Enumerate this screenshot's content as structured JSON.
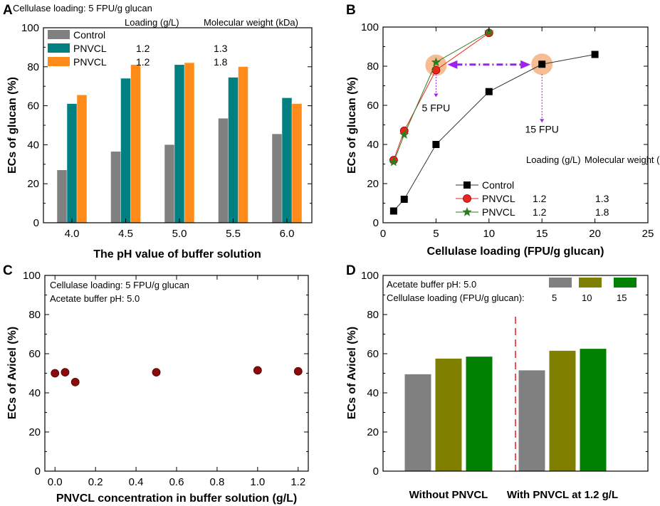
{
  "chart_data": [
    {
      "panel": "A",
      "type": "bar",
      "title": "",
      "xlabel": "The pH value of buffer solution",
      "ylabel": "ECs of glucan (%)",
      "ylim": [
        0,
        100
      ],
      "yticks": [
        "0",
        "20",
        "40",
        "60",
        "80",
        "100"
      ],
      "categories": [
        "4.0",
        "4.5",
        "5.0",
        "5.5",
        "6.0"
      ],
      "annotation": "Cellulase loading: 5 FPU/g glucan",
      "legend_columns": [
        "Loading (g/L)",
        "Molecular weight (kDa)"
      ],
      "series": [
        {
          "name": "Control",
          "color": "#808080",
          "loading": "",
          "mw": "",
          "values": [
            27,
            36.5,
            40,
            53.5,
            45.5
          ]
        },
        {
          "name": "PNVCL",
          "color": "#008080",
          "loading": "1.2",
          "mw": "1.3",
          "values": [
            61,
            74,
            81,
            74.5,
            64
          ]
        },
        {
          "name": "PNVCL",
          "color": "#FF8C1A",
          "loading": "1.2",
          "mw": "1.8",
          "values": [
            65.5,
            81,
            82,
            80,
            61
          ]
        }
      ]
    },
    {
      "panel": "B",
      "type": "line",
      "xlabel": "Cellulase loading (FPU/g glucan)",
      "ylabel": "ECs of glucan (%)",
      "xlim": [
        0,
        25
      ],
      "ylim": [
        0,
        100
      ],
      "xticks": [
        "0",
        "5",
        "10",
        "15",
        "20",
        "25"
      ],
      "yticks": [
        "0",
        "20",
        "40",
        "60",
        "80",
        "100"
      ],
      "legend_columns": [
        "Loading (g/L)",
        "Molecular weight (kDa)"
      ],
      "series": [
        {
          "name": "Control",
          "color": "#000000",
          "marker": "square",
          "loading": "",
          "mw": "",
          "x": [
            1,
            2,
            5,
            10,
            15,
            20
          ],
          "y": [
            6,
            12,
            40,
            67,
            81,
            86
          ]
        },
        {
          "name": "PNVCL",
          "color": "#E8261C",
          "marker": "circle",
          "loading": "1.2",
          "mw": "1.3",
          "x": [
            1,
            2,
            5,
            10
          ],
          "y": [
            32,
            47,
            78,
            97
          ]
        },
        {
          "name": "PNVCL",
          "color": "#2E7D1E",
          "marker": "star",
          "loading": "1.2",
          "mw": "1.8",
          "x": [
            1,
            2,
            5,
            10
          ],
          "y": [
            31,
            45,
            82,
            97.5
          ]
        }
      ],
      "annotations": [
        "5 FPU",
        "15 FPU"
      ]
    },
    {
      "panel": "C",
      "type": "scatter",
      "xlabel": "PNVCL concentration in buffer solution (g/L)",
      "ylabel": "ECs of Avicel (%)",
      "xlim": [
        -0.05,
        1.25
      ],
      "ylim": [
        0,
        100
      ],
      "xticks": [
        "0.0",
        "0.2",
        "0.4",
        "0.6",
        "0.8",
        "1.0",
        "1.2"
      ],
      "yticks": [
        "0",
        "20",
        "40",
        "60",
        "80",
        "100"
      ],
      "annotations": [
        "Cellulase loading: 5 FPU/g glucan",
        "Acetate buffer pH: 5.0"
      ],
      "color": "#8B0A0A",
      "x": [
        0,
        0.05,
        0.1,
        0.5,
        1.0,
        1.2
      ],
      "y": [
        50,
        50.5,
        45.5,
        50.5,
        51.5,
        51
      ]
    },
    {
      "panel": "D",
      "type": "bar",
      "xlabel": "",
      "ylabel": "ECs of Avicel (%)",
      "ylim": [
        0,
        100
      ],
      "yticks": [
        "0",
        "20",
        "40",
        "60",
        "80",
        "100"
      ],
      "categories": [
        "Without PNVCL",
        "With PNVCL at 1.2 g/L"
      ],
      "annotations": [
        "Acetate buffer pH: 5.0",
        "Cellulase loading (FPU/g glucan):"
      ],
      "series": [
        {
          "name": "5",
          "color": "#808080",
          "values": [
            49.5,
            51.5
          ]
        },
        {
          "name": "10",
          "color": "#808000",
          "values": [
            57.5,
            61.5
          ]
        },
        {
          "name": "15",
          "color": "#008000",
          "values": [
            58.5,
            62.5
          ]
        }
      ]
    }
  ],
  "panel_labels": [
    "A",
    "B",
    "C",
    "D"
  ]
}
